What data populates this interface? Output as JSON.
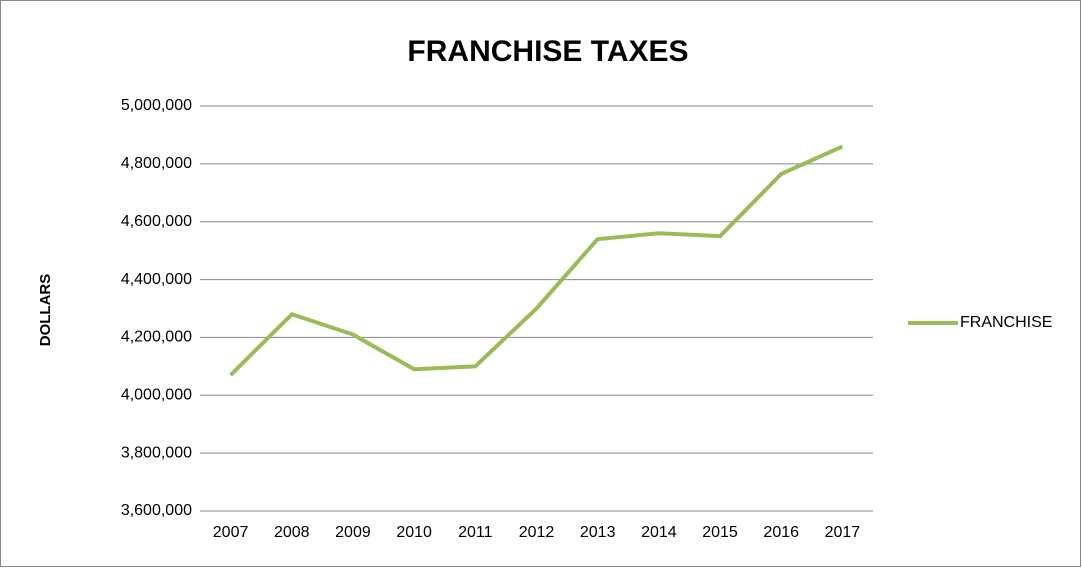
{
  "chart_data": {
    "type": "line",
    "title": "FRANCHISE TAXES",
    "ylabel": "DOLLARS",
    "categories": [
      "2007",
      "2008",
      "2009",
      "2010",
      "2011",
      "2012",
      "2013",
      "2014",
      "2015",
      "2016",
      "2017"
    ],
    "series": [
      {
        "name": "FRANCHISE",
        "color": "#9bbb59",
        "values": [
          4070000,
          4280000,
          4210000,
          4090000,
          4100000,
          4300000,
          4540000,
          4560000,
          4550000,
          4765000,
          4860000
        ]
      }
    ],
    "ylim": [
      3600000,
      5000000
    ],
    "yticks": [
      {
        "value": 3600000,
        "label": "3,600,000"
      },
      {
        "value": 3800000,
        "label": "3,800,000"
      },
      {
        "value": 4000000,
        "label": "4,000,000"
      },
      {
        "value": 4200000,
        "label": "4,200,000"
      },
      {
        "value": 4400000,
        "label": "4,400,000"
      },
      {
        "value": 4600000,
        "label": "4,600,000"
      },
      {
        "value": 4800000,
        "label": "4,800,000"
      },
      {
        "value": 5000000,
        "label": "5,000,000"
      }
    ],
    "grid": true,
    "legend": "right"
  }
}
